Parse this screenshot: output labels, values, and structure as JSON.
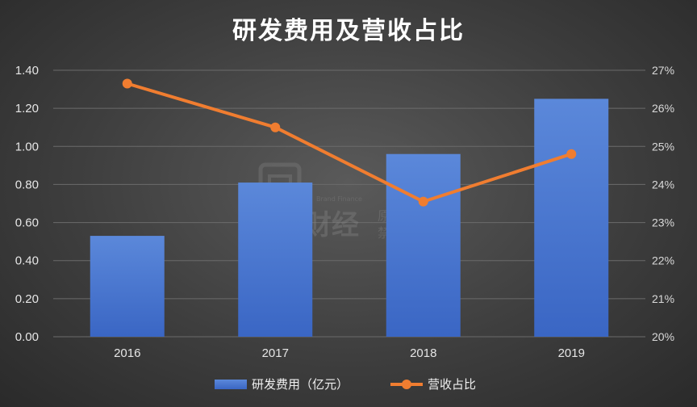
{
  "chart_data": {
    "type": "bar",
    "title": "研发费用及营收占比",
    "categories": [
      "2016",
      "2017",
      "2018",
      "2019"
    ],
    "series": [
      {
        "name": "研发费用（亿元）",
        "type": "bar",
        "axis": "left",
        "color": "#4f7fd6",
        "values": [
          0.53,
          0.81,
          0.96,
          1.25
        ]
      },
      {
        "name": "营收占比",
        "type": "line",
        "axis": "right",
        "color": "#f07d30",
        "values": [
          26.65,
          25.5,
          23.55,
          24.8
        ],
        "unit": "%"
      }
    ],
    "y_left": {
      "ylim": [
        0,
        1.4
      ],
      "ticks": [
        "0.00",
        "0.20",
        "0.40",
        "0.60",
        "0.80",
        "1.00",
        "1.20",
        "1.40"
      ]
    },
    "y_right": {
      "ylim": [
        20,
        27
      ],
      "ticks": [
        "20%",
        "21%",
        "22%",
        "23%",
        "24%",
        "25%",
        "26%",
        "27%"
      ]
    },
    "grid": true,
    "legend": "bottom"
  },
  "watermark": {
    "brand": "财经",
    "brand_en": "Brand Finance",
    "line1": "原创作品",
    "line2": "禁止转载"
  }
}
